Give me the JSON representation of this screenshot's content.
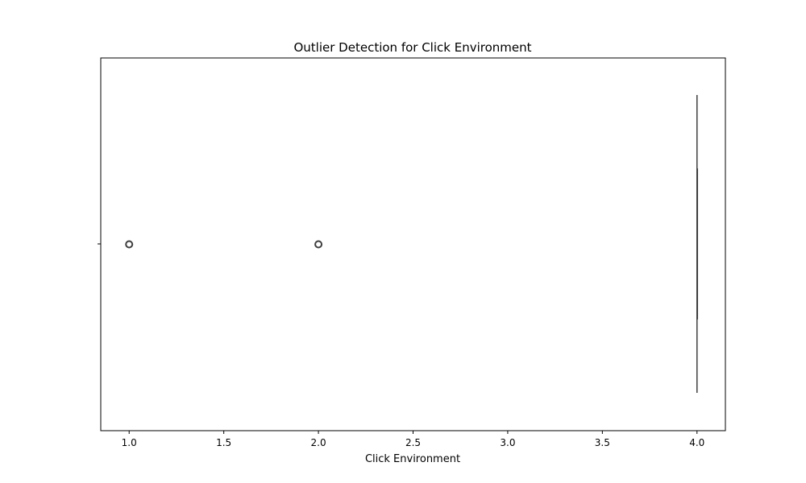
{
  "chart_data": {
    "type": "box",
    "orientation": "horizontal",
    "title": "Outlier Detection for Click Environment",
    "xlabel": "Click Environment",
    "ylabel": "",
    "xlim": [
      0.85,
      4.15
    ],
    "xticks": [
      1.0,
      1.5,
      2.0,
      2.5,
      3.0,
      3.5,
      4.0
    ],
    "xtick_labels": [
      "1.0",
      "1.5",
      "2.0",
      "2.5",
      "3.0",
      "3.5",
      "4.0"
    ],
    "box": {
      "whisker_low": 4.0,
      "q1": 4.0,
      "median": 4.0,
      "q3": 4.0,
      "whisker_high": 4.0
    },
    "outliers": [
      1.0,
      2.0
    ],
    "grid": false,
    "colors": {
      "box_edge": "#3f3f3f",
      "outlier_edge": "#3f3f3f"
    }
  }
}
